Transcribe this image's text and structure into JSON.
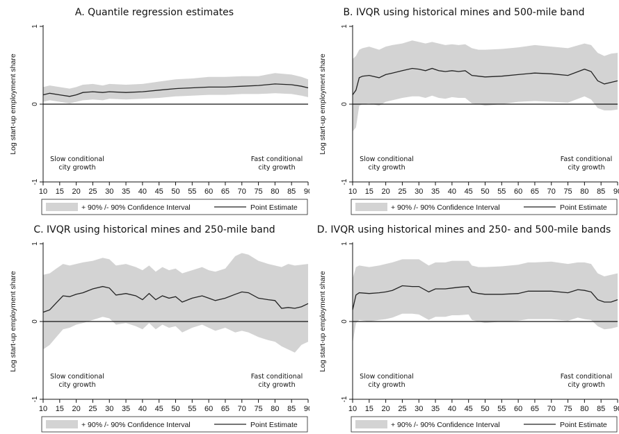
{
  "chart_data": [
    {
      "type": "line",
      "title": "A. Quantile regression estimates",
      "ylabel": "Log start-up employment share",
      "ylim": [
        -1,
        1
      ],
      "yticks": [
        "-1",
        "0",
        "1"
      ],
      "xlim": [
        10,
        90
      ],
      "xticks": [
        "10",
        "15",
        "20",
        "25",
        "30",
        "35",
        "40",
        "45",
        "50",
        "55",
        "60",
        "65",
        "70",
        "75",
        "80",
        "85",
        "90"
      ],
      "annotation_left": [
        "Slow conditional",
        "city growth"
      ],
      "annotation_right": [
        "Fast conditional",
        "city growth"
      ],
      "legend": [
        "+ 90% /- 90% Confidence Interval",
        "Point Estimate"
      ],
      "series": [
        {
          "name": "Point Estimate",
          "x": [
            10,
            12,
            15,
            18,
            20,
            22,
            25,
            28,
            30,
            35,
            40,
            45,
            50,
            55,
            60,
            65,
            70,
            75,
            80,
            85,
            88,
            90
          ],
          "y": [
            0.12,
            0.14,
            0.12,
            0.1,
            0.12,
            0.15,
            0.16,
            0.15,
            0.16,
            0.15,
            0.16,
            0.18,
            0.2,
            0.21,
            0.22,
            0.22,
            0.23,
            0.24,
            0.26,
            0.25,
            0.23,
            0.21
          ]
        },
        {
          "name": "+ 90% /- 90% Confidence Interval",
          "x": [
            10,
            12,
            15,
            18,
            20,
            22,
            25,
            28,
            30,
            35,
            40,
            45,
            50,
            55,
            60,
            65,
            70,
            75,
            80,
            85,
            88,
            90
          ],
          "upper": [
            0.22,
            0.24,
            0.22,
            0.2,
            0.22,
            0.25,
            0.26,
            0.24,
            0.26,
            0.25,
            0.26,
            0.29,
            0.32,
            0.33,
            0.35,
            0.35,
            0.36,
            0.36,
            0.4,
            0.38,
            0.35,
            0.32
          ],
          "lower": [
            0.03,
            0.05,
            0.03,
            0.01,
            0.03,
            0.05,
            0.06,
            0.05,
            0.07,
            0.06,
            0.07,
            0.08,
            0.1,
            0.11,
            0.12,
            0.12,
            0.13,
            0.13,
            0.14,
            0.13,
            0.11,
            0.09
          ]
        }
      ]
    },
    {
      "type": "line",
      "title": "B. IVQR using historical mines and 500-mile band",
      "ylabel": "Log start-up employment share",
      "ylim": [
        -1,
        1
      ],
      "yticks": [
        "-1",
        "0",
        "1"
      ],
      "xlim": [
        10,
        90
      ],
      "xticks": [
        "10",
        "15",
        "20",
        "25",
        "30",
        "35",
        "40",
        "45",
        "50",
        "55",
        "60",
        "65",
        "70",
        "75",
        "80",
        "85",
        "90"
      ],
      "annotation_left": [
        "Slow conditional",
        "city growth"
      ],
      "annotation_right": [
        "Fast conditional",
        "city growth"
      ],
      "legend": [
        "+ 90% /- 90% Confidence Interval",
        "Point Estimate"
      ],
      "series": [
        {
          "name": "Point Estimate",
          "x": [
            10,
            11,
            12,
            13,
            15,
            18,
            20,
            22,
            25,
            28,
            30,
            32,
            34,
            36,
            38,
            40,
            42,
            44,
            46,
            48,
            50,
            55,
            60,
            65,
            70,
            75,
            80,
            82,
            84,
            86,
            88,
            90
          ],
          "y": [
            0.12,
            0.18,
            0.34,
            0.36,
            0.37,
            0.34,
            0.38,
            0.4,
            0.43,
            0.46,
            0.45,
            0.43,
            0.46,
            0.43,
            0.42,
            0.43,
            0.42,
            0.43,
            0.37,
            0.36,
            0.35,
            0.36,
            0.38,
            0.4,
            0.39,
            0.37,
            0.45,
            0.42,
            0.3,
            0.26,
            0.28,
            0.3
          ]
        },
        {
          "name": "+ 90% /- 90% Confidence Interval",
          "x": [
            10,
            11,
            12,
            13,
            15,
            18,
            20,
            22,
            25,
            28,
            30,
            32,
            34,
            36,
            38,
            40,
            42,
            44,
            46,
            48,
            50,
            55,
            60,
            65,
            70,
            75,
            80,
            82,
            84,
            86,
            88,
            90
          ],
          "upper": [
            0.58,
            0.62,
            0.7,
            0.72,
            0.74,
            0.7,
            0.74,
            0.76,
            0.78,
            0.82,
            0.8,
            0.78,
            0.8,
            0.78,
            0.76,
            0.77,
            0.76,
            0.77,
            0.72,
            0.7,
            0.7,
            0.71,
            0.73,
            0.76,
            0.74,
            0.72,
            0.78,
            0.76,
            0.66,
            0.62,
            0.65,
            0.66
          ],
          "lower": [
            -0.35,
            -0.3,
            -0.02,
            0.0,
            0.01,
            -0.02,
            0.03,
            0.05,
            0.08,
            0.1,
            0.1,
            0.08,
            0.11,
            0.08,
            0.07,
            0.09,
            0.08,
            0.08,
            0.01,
            0.0,
            -0.02,
            0.0,
            0.03,
            0.04,
            0.03,
            0.02,
            0.1,
            0.06,
            -0.05,
            -0.08,
            -0.08,
            -0.07
          ]
        }
      ]
    },
    {
      "type": "line",
      "title": "C. IVQR using historical mines and 250-mile band",
      "ylabel": "Log start-up employment share",
      "ylim": [
        -1,
        1
      ],
      "yticks": [
        "-1",
        "0",
        "1"
      ],
      "xlim": [
        10,
        90
      ],
      "xticks": [
        "10",
        "15",
        "20",
        "25",
        "30",
        "35",
        "40",
        "45",
        "50",
        "55",
        "60",
        "65",
        "70",
        "75",
        "80",
        "85",
        "90"
      ],
      "annotation_left": [
        "Slow conditional",
        "city growth"
      ],
      "annotation_right": [
        "Fast conditional",
        "city growth"
      ],
      "legend": [
        "+ 90% /- 90% Confidence Interval",
        "Point Estimate"
      ],
      "series": [
        {
          "name": "Point Estimate",
          "x": [
            10,
            12,
            14,
            16,
            18,
            20,
            22,
            25,
            28,
            30,
            32,
            35,
            38,
            40,
            42,
            44,
            46,
            48,
            50,
            52,
            55,
            58,
            60,
            62,
            65,
            68,
            70,
            72,
            75,
            78,
            80,
            82,
            84,
            86,
            88,
            90
          ],
          "y": [
            0.12,
            0.15,
            0.24,
            0.33,
            0.32,
            0.35,
            0.37,
            0.42,
            0.45,
            0.43,
            0.34,
            0.36,
            0.33,
            0.28,
            0.36,
            0.28,
            0.33,
            0.3,
            0.32,
            0.25,
            0.3,
            0.33,
            0.3,
            0.27,
            0.3,
            0.35,
            0.38,
            0.37,
            0.3,
            0.28,
            0.27,
            0.17,
            0.18,
            0.17,
            0.19,
            0.23
          ]
        },
        {
          "name": "+ 90% /- 90% Confidence Interval",
          "x": [
            10,
            12,
            14,
            16,
            18,
            20,
            22,
            25,
            28,
            30,
            32,
            35,
            38,
            40,
            42,
            44,
            46,
            48,
            50,
            52,
            55,
            58,
            60,
            62,
            65,
            68,
            70,
            72,
            75,
            78,
            80,
            82,
            84,
            86,
            88,
            90
          ],
          "upper": [
            0.6,
            0.62,
            0.68,
            0.74,
            0.72,
            0.74,
            0.76,
            0.78,
            0.82,
            0.8,
            0.72,
            0.74,
            0.7,
            0.66,
            0.72,
            0.64,
            0.7,
            0.66,
            0.68,
            0.62,
            0.66,
            0.7,
            0.66,
            0.64,
            0.68,
            0.84,
            0.88,
            0.86,
            0.78,
            0.74,
            0.72,
            0.7,
            0.74,
            0.72,
            0.73,
            0.74
          ],
          "lower": [
            -0.36,
            -0.3,
            -0.2,
            -0.1,
            -0.08,
            -0.04,
            -0.02,
            0.02,
            0.06,
            0.04,
            -0.04,
            -0.02,
            -0.06,
            -0.1,
            -0.02,
            -0.1,
            -0.04,
            -0.08,
            -0.06,
            -0.14,
            -0.08,
            -0.04,
            -0.08,
            -0.12,
            -0.08,
            -0.14,
            -0.12,
            -0.14,
            -0.2,
            -0.24,
            -0.26,
            -0.32,
            -0.36,
            -0.4,
            -0.3,
            -0.26
          ]
        }
      ]
    },
    {
      "type": "line",
      "title": "D. IVQR using historical mines and 250- and 500-mile bands",
      "ylabel": "Log start-up employment share",
      "ylim": [
        -1,
        1
      ],
      "yticks": [
        "-1",
        "0",
        "1"
      ],
      "xlim": [
        10,
        90
      ],
      "xticks": [
        "10",
        "15",
        "20",
        "25",
        "30",
        "35",
        "40",
        "45",
        "50",
        "55",
        "60",
        "65",
        "70",
        "75",
        "80",
        "85",
        "90"
      ],
      "annotation_left": [
        "Slow conditional",
        "city growth"
      ],
      "annotation_right": [
        "Fast conditional",
        "city growth"
      ],
      "legend": [
        "+ 90% /- 90% Confidence Interval",
        "Point Estimate"
      ],
      "series": [
        {
          "name": "Point Estimate",
          "x": [
            10,
            11,
            12,
            15,
            18,
            20,
            22,
            25,
            28,
            30,
            33,
            35,
            38,
            40,
            42,
            45,
            46,
            48,
            50,
            55,
            60,
            63,
            65,
            70,
            75,
            78,
            80,
            82,
            84,
            86,
            88,
            90
          ],
          "y": [
            0.15,
            0.34,
            0.37,
            0.36,
            0.37,
            0.38,
            0.4,
            0.46,
            0.45,
            0.45,
            0.38,
            0.42,
            0.42,
            0.43,
            0.44,
            0.45,
            0.38,
            0.36,
            0.35,
            0.35,
            0.36,
            0.39,
            0.39,
            0.39,
            0.37,
            0.41,
            0.4,
            0.38,
            0.28,
            0.25,
            0.25,
            0.28
          ]
        },
        {
          "name": "+ 90% /- 90% Confidence Interval",
          "x": [
            10,
            11,
            12,
            15,
            18,
            20,
            22,
            25,
            28,
            30,
            33,
            35,
            38,
            40,
            42,
            45,
            46,
            48,
            50,
            55,
            60,
            63,
            65,
            70,
            75,
            78,
            80,
            82,
            84,
            86,
            88,
            90
          ],
          "upper": [
            0.55,
            0.7,
            0.72,
            0.7,
            0.72,
            0.74,
            0.76,
            0.8,
            0.8,
            0.8,
            0.72,
            0.76,
            0.76,
            0.78,
            0.78,
            0.78,
            0.72,
            0.7,
            0.7,
            0.71,
            0.73,
            0.76,
            0.76,
            0.77,
            0.74,
            0.76,
            0.76,
            0.74,
            0.62,
            0.58,
            0.6,
            0.62
          ],
          "lower": [
            -0.28,
            -0.02,
            0.02,
            0.0,
            0.02,
            0.03,
            0.05,
            0.1,
            0.1,
            0.09,
            0.02,
            0.06,
            0.06,
            0.08,
            0.08,
            0.09,
            0.02,
            0.0,
            -0.02,
            0.0,
            0.01,
            0.03,
            0.03,
            0.03,
            0.01,
            0.05,
            0.03,
            0.02,
            -0.06,
            -0.1,
            -0.09,
            -0.07
          ]
        }
      ]
    }
  ],
  "colors": {
    "band": "#d3d3d3",
    "line": "#222222",
    "axis": "#111111",
    "zero": "#111111"
  }
}
